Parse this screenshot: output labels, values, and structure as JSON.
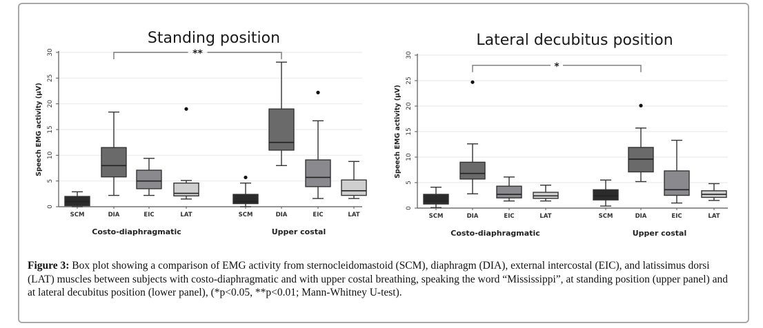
{
  "chart_data": [
    {
      "type": "box",
      "title": "Standing position",
      "ylabel": "Speech EMG activity (µV)",
      "ylim": [
        0,
        30
      ],
      "yticks": [
        0,
        5,
        10,
        15,
        20,
        25,
        30
      ],
      "grid": true,
      "groups": [
        "Costo-diaphragmatic",
        "Upper costal"
      ],
      "categories": [
        "SCM",
        "DIA",
        "EIC",
        "LAT",
        "SCM",
        "DIA",
        "EIC",
        "LAT"
      ],
      "boxes": [
        {
          "group": "Costo-diaphragmatic",
          "muscle": "SCM",
          "min": 0.0,
          "q1": 0.2,
          "median": 1.0,
          "q3": 2.0,
          "max": 2.9,
          "outliers": [],
          "color": "#2b2b2b"
        },
        {
          "group": "Costo-diaphragmatic",
          "muscle": "DIA",
          "min": 2.2,
          "q1": 5.8,
          "median": 8.0,
          "q3": 11.5,
          "max": 18.4,
          "outliers": [],
          "color": "#6a6a6a"
        },
        {
          "group": "Costo-diaphragmatic",
          "muscle": "EIC",
          "min": 2.2,
          "q1": 3.5,
          "median": 5.0,
          "q3": 7.1,
          "max": 9.4,
          "outliers": [],
          "color": "#8a8a8e"
        },
        {
          "group": "Costo-diaphragmatic",
          "muscle": "LAT",
          "min": 1.5,
          "q1": 2.1,
          "median": 2.6,
          "q3": 4.6,
          "max": 5.1,
          "outliers": [
            19.0
          ],
          "color": "#cfcfcf"
        },
        {
          "group": "Upper costal",
          "muscle": "SCM",
          "min": 0.0,
          "q1": 0.6,
          "median": 1.0,
          "q3": 2.4,
          "max": 4.6,
          "outliers": [
            5.7
          ],
          "color": "#2b2b2b"
        },
        {
          "group": "Upper costal",
          "muscle": "DIA",
          "min": 8.0,
          "q1": 11.0,
          "median": 12.5,
          "q3": 19.0,
          "max": 28.1,
          "outliers": [],
          "color": "#6a6a6a"
        },
        {
          "group": "Upper costal",
          "muscle": "EIC",
          "min": 1.6,
          "q1": 3.9,
          "median": 5.7,
          "q3": 9.1,
          "max": 16.7,
          "outliers": [
            22.2
          ],
          "color": "#8a8a8e"
        },
        {
          "group": "Upper costal",
          "muscle": "LAT",
          "min": 1.6,
          "q1": 2.2,
          "median": 3.1,
          "q3": 5.2,
          "max": 8.8,
          "outliers": [],
          "color": "#cfcfcf"
        }
      ],
      "significance": {
        "from": 1,
        "to": 5,
        "label": "**",
        "y": 30
      }
    },
    {
      "type": "box",
      "title": "Lateral decubitus position",
      "ylabel": "Speech EMG activity (µV)",
      "ylim": [
        0,
        30
      ],
      "yticks": [
        0,
        5,
        10,
        15,
        20,
        25,
        30
      ],
      "grid": true,
      "groups": [
        "Costo-diaphragmatic",
        "Upper costal"
      ],
      "categories": [
        "SCM",
        "DIA",
        "EIC",
        "LAT",
        "SCM",
        "DIA",
        "EIC",
        "LAT"
      ],
      "boxes": [
        {
          "group": "Costo-diaphragmatic",
          "muscle": "SCM",
          "min": 0.1,
          "q1": 0.8,
          "median": 1.4,
          "q3": 2.7,
          "max": 4.1,
          "outliers": [],
          "color": "#2b2b2b"
        },
        {
          "group": "Costo-diaphragmatic",
          "muscle": "DIA",
          "min": 2.8,
          "q1": 5.7,
          "median": 6.8,
          "q3": 9.0,
          "max": 12.6,
          "outliers": [
            24.7
          ],
          "color": "#6a6a6a"
        },
        {
          "group": "Costo-diaphragmatic",
          "muscle": "EIC",
          "min": 1.4,
          "q1": 2.0,
          "median": 2.7,
          "q3": 4.3,
          "max": 6.1,
          "outliers": [],
          "color": "#8a8a8e"
        },
        {
          "group": "Costo-diaphragmatic",
          "muscle": "LAT",
          "min": 1.4,
          "q1": 1.9,
          "median": 2.4,
          "q3": 3.1,
          "max": 4.5,
          "outliers": [],
          "color": "#cfcfcf"
        },
        {
          "group": "Upper costal",
          "muscle": "SCM",
          "min": 0.4,
          "q1": 1.6,
          "median": 2.4,
          "q3": 3.6,
          "max": 5.5,
          "outliers": [],
          "color": "#2b2b2b"
        },
        {
          "group": "Upper costal",
          "muscle": "DIA",
          "min": 5.2,
          "q1": 7.1,
          "median": 9.6,
          "q3": 11.9,
          "max": 15.7,
          "outliers": [
            20.1
          ],
          "color": "#6a6a6a"
        },
        {
          "group": "Upper costal",
          "muscle": "EIC",
          "min": 1.0,
          "q1": 2.5,
          "median": 3.6,
          "q3": 7.3,
          "max": 13.3,
          "outliers": [],
          "color": "#8a8a8e"
        },
        {
          "group": "Upper costal",
          "muscle": "LAT",
          "min": 1.5,
          "q1": 2.1,
          "median": 2.7,
          "q3": 3.4,
          "max": 4.8,
          "outliers": [],
          "color": "#cfcfcf"
        }
      ],
      "significance": {
        "from": 1,
        "to": 5,
        "label": "*",
        "y": 28
      }
    }
  ],
  "caption": {
    "label": "Figure 3:",
    "text": " Box plot showing a comparison of EMG activity from sternocleidomastoid (SCM), diaphragm (DIA), external intercostal (EIC), and latissimus dorsi (LAT) muscles between subjects with costo-diaphragmatic and with upper costal breathing, speaking the word “Mississippi”, at standing position (upper panel) and at lateral decubitus position (lower panel), (*p<0.05, **p<0.01; Mann-Whitney U-test)."
  }
}
